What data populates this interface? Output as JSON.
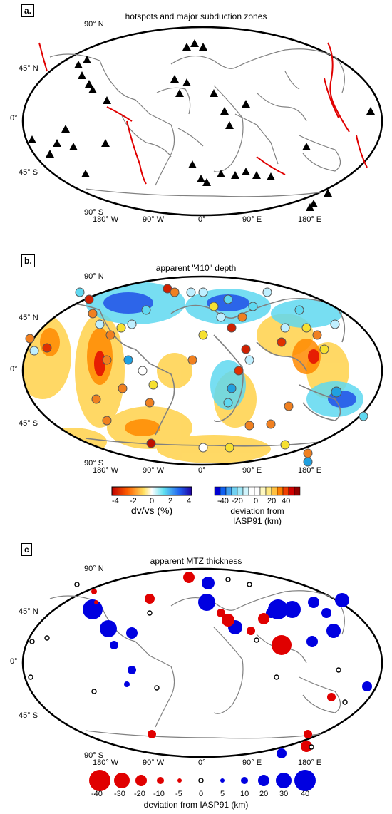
{
  "panels": {
    "a": {
      "label": "a.",
      "title": "hotspots and major subduction zones",
      "lat_labels": [
        "90° N",
        "45° N",
        "0°",
        "45° S",
        "90° S"
      ],
      "lon_labels": [
        "180° W",
        "90° W",
        "0°",
        "90° E",
        "180° E"
      ]
    },
    "b": {
      "label": "b.",
      "title": "apparent \"410\" depth",
      "lat_labels": [
        "90° N",
        "45° N",
        "0°",
        "45° S",
        "90° S"
      ],
      "lon_labels": [
        "180° W",
        "90° W",
        "0°",
        "90° E",
        "180° E"
      ],
      "colorbar_left": {
        "ticks": [
          "-4",
          "-2",
          "0",
          "2",
          "4"
        ],
        "title": "dv/vs (%)"
      },
      "colorbar_right": {
        "ticks": [
          "-40",
          "-20",
          "0",
          "20",
          "40"
        ],
        "title_line1": "deviation from",
        "title_line2": "IASP91 (km)"
      }
    },
    "c": {
      "label": "c",
      "title": "apparent MTZ thickness",
      "lat_labels": [
        "90° N",
        "45° N",
        "0°",
        "45° S",
        "90° S"
      ],
      "lon_labels": [
        "180° W",
        "90° W",
        "0°",
        "90° E",
        "180° E"
      ],
      "legend_values": [
        "-40",
        "-30",
        "-20",
        "-10",
        "-5",
        "0",
        "5",
        "10",
        "20",
        "30",
        "40"
      ],
      "legend_title": "deviation from IASP91 (km)"
    }
  },
  "colors": {
    "slow": "#d40000",
    "fast": "#0000e0",
    "coast": "#808080",
    "subduction": "#e00000"
  }
}
